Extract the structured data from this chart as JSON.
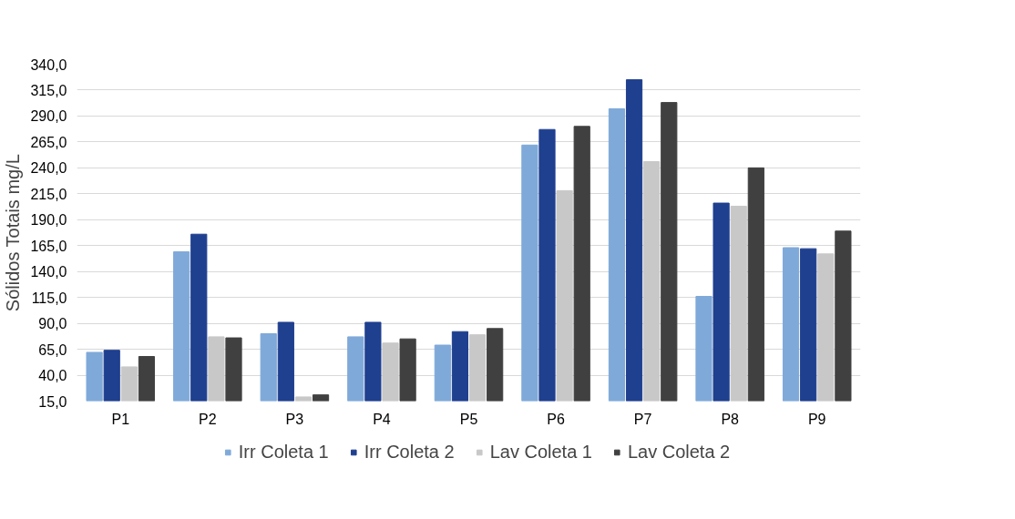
{
  "chart_data": {
    "type": "bar",
    "ylabel": "Sólidos Totais mg/L",
    "categories": [
      "P1",
      "P2",
      "P3",
      "P4",
      "P5",
      "P6",
      "P7",
      "P8",
      "P9"
    ],
    "series": [
      {
        "name": "Irr Coleta 1",
        "color": "#7fa9d9",
        "values": [
          62,
          159,
          80,
          77,
          69,
          262,
          297,
          116,
          163
        ]
      },
      {
        "name": "Irr Coleta 2",
        "color": "#1f3f8f",
        "values": [
          64,
          176,
          91,
          91,
          82,
          277,
          325,
          206,
          162
        ]
      },
      {
        "name": "Lav Coleta 1",
        "color": "#c8c8c8",
        "values": [
          48,
          77,
          19,
          71,
          79,
          218,
          246,
          203,
          157
        ]
      },
      {
        "name": "Lav Coleta 2",
        "color": "#404040",
        "values": [
          58,
          76,
          21,
          75,
          85,
          280,
          303,
          240,
          179
        ]
      }
    ],
    "ylim": [
      15,
      340
    ],
    "yticks": [
      {
        "value": 15,
        "label": "15,0"
      },
      {
        "value": 40,
        "label": "40,0"
      },
      {
        "value": 65,
        "label": "65,0"
      },
      {
        "value": 90,
        "label": "90,0"
      },
      {
        "value": 115,
        "label": "115,0"
      },
      {
        "value": 140,
        "label": "140,0"
      },
      {
        "value": 165,
        "label": "165,0"
      },
      {
        "value": 190,
        "label": "190,0"
      },
      {
        "value": 215,
        "label": "215,0"
      },
      {
        "value": 240,
        "label": "240,0"
      },
      {
        "value": 265,
        "label": "265,0"
      },
      {
        "value": 290,
        "label": "290,0"
      },
      {
        "value": 315,
        "label": "315,0"
      },
      {
        "value": 340,
        "label": "340,0"
      }
    ],
    "grid": "y",
    "legend": "bottom"
  }
}
